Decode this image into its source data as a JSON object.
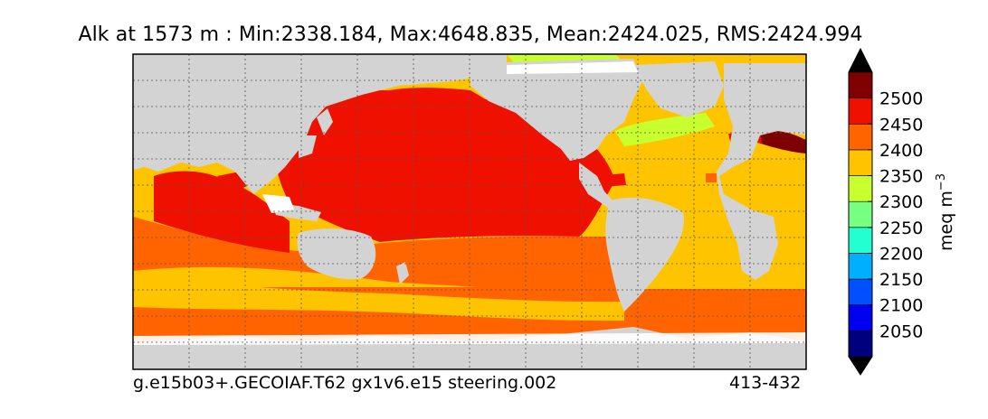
{
  "title": "Alk at 1573 m : Min:2338.184, Max:4648.835, Mean:2424.025, RMS:2424.994",
  "footer": {
    "case_name": "g.e15b03+.GECOIAF.T62 gx1v6.e15 steering.002",
    "years": "413-432"
  },
  "colorbar": {
    "label": "meq m",
    "label_superscript": "−3",
    "extend": "both",
    "ticks": [
      "2050",
      "2100",
      "2150",
      "2200",
      "2250",
      "2300",
      "2350",
      "2400",
      "2450",
      "2500"
    ],
    "colors": [
      "#00007f",
      "#0000f0",
      "#0050ff",
      "#00b0ff",
      "#24ffd2",
      "#76ff80",
      "#c8ff2e",
      "#ffc400",
      "#ff6400",
      "#f01000",
      "#7f0000"
    ],
    "extend_low_color": "#000000",
    "extend_high_color": "#000000"
  },
  "map": {
    "land_color": "#d3d3d3",
    "missing_color": "#ffffff",
    "grid": "dotted"
  }
}
